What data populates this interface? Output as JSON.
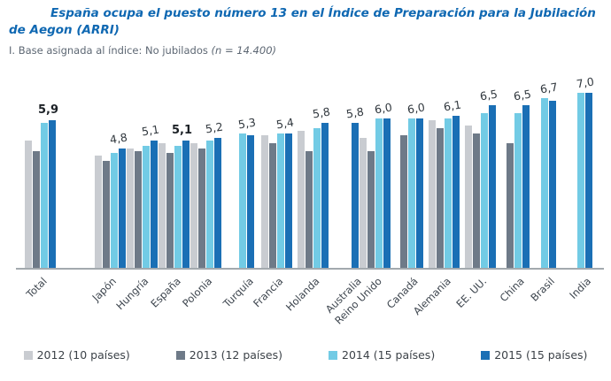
{
  "header": {
    "title": "España ocupa el puesto número 13 en el Índice de Preparación para la Jubilación de Aegon (ARRI)",
    "subtitle": "I. Base asignada al índice: No jubilados",
    "subtitle_note": "(n = 14.400)"
  },
  "chart_data": {
    "type": "bar",
    "title": "España ocupa el puesto número 13 en el Índice de Preparación para la Jubilación de Aegon (ARRI)",
    "subtitle": "I. Base asignada al índice: No jubilados (n = 14.400)",
    "categories": [
      "Total",
      "Japón",
      "Hungría",
      "España",
      "Polonia",
      "Turquía",
      "Francia",
      "Holanda",
      "Australia",
      "Reino Unido",
      "Canadá",
      "Alemania",
      "EE. UU.",
      "China",
      "Brasil",
      "India"
    ],
    "series": [
      {
        "name": "2012 (10 países)",
        "color": "#c9ccd1",
        "values": [
          5.1,
          4.5,
          4.8,
          5.0,
          5.0,
          null,
          5.3,
          5.5,
          null,
          5.2,
          null,
          5.9,
          5.7,
          null,
          null,
          null
        ]
      },
      {
        "name": "2013 (12 países)",
        "color": "#6e7a88",
        "values": [
          4.7,
          4.3,
          4.7,
          4.6,
          4.8,
          null,
          5.0,
          4.7,
          null,
          4.7,
          5.3,
          5.6,
          5.4,
          5.0,
          null,
          null
        ]
      },
      {
        "name": "2014 (15 países)",
        "color": "#72cbe5",
        "values": [
          5.8,
          4.6,
          4.9,
          4.9,
          5.1,
          5.4,
          5.4,
          5.6,
          null,
          6.0,
          6.0,
          6.0,
          6.2,
          6.2,
          6.8,
          7.0
        ]
      },
      {
        "name": "2015 (15 países)",
        "color": "#1a6fb5",
        "values": [
          5.9,
          4.8,
          5.1,
          5.1,
          5.2,
          5.3,
          5.4,
          5.8,
          5.8,
          6.0,
          6.0,
          6.1,
          6.5,
          6.5,
          6.7,
          7.0
        ]
      }
    ],
    "value_labels": [
      "5,9",
      "4,8",
      "5,1",
      "5,1",
      "5,2",
      "5,3",
      "5,4",
      "5,8",
      "5,8",
      "6,0",
      "6,0",
      "6,1",
      "6,5",
      "6,5",
      "6,7",
      "7,0"
    ],
    "bold_label_categories": [
      "Total",
      "España"
    ],
    "ylim": [
      0,
      7.5
    ],
    "grid": false,
    "axis_color": "#a3a9ae",
    "legend_position": "bottom"
  }
}
